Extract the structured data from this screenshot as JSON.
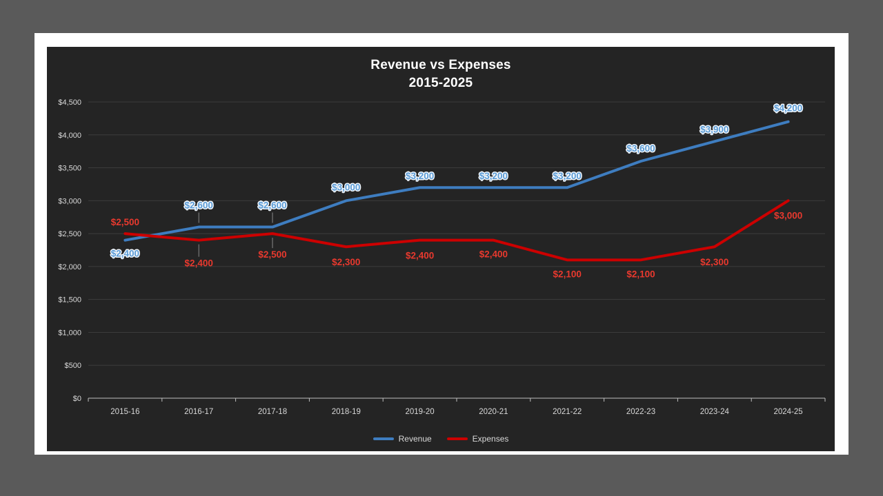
{
  "page": {
    "background": "#5A5A5A",
    "slide_background": "#FFFFFF",
    "chart_background": "#242424"
  },
  "chart_data": {
    "type": "line",
    "title": "Revenue vs Expenses",
    "subtitle": "2015-2025",
    "categories": [
      "2015-16",
      "2016-17",
      "2017-18",
      "2018-19",
      "2019-20",
      "2020-21",
      "2021-22",
      "2022-23",
      "2023-24",
      "2024-25"
    ],
    "series": [
      {
        "name": "Revenue",
        "color": "#3E7DC0",
        "label_color": "#5B9BD5",
        "label_stroke": "#F2F7FC",
        "values": [
          2400,
          2600,
          2600,
          3000,
          3200,
          3200,
          3200,
          3600,
          3900,
          4200
        ],
        "labels": [
          "$2,400",
          "$2,600",
          "$2,600",
          "$3,000",
          "$3,200",
          "$3,200",
          "$3,200",
          "$3,600",
          "$3,900",
          "$4,200"
        ],
        "label_offsets": [
          20,
          -31,
          -31,
          -19,
          -16,
          -16,
          -16,
          -18,
          -17,
          -19
        ]
      },
      {
        "name": "Expenses",
        "color": "#CC0000",
        "label_color": "#E8392E",
        "label_stroke": "",
        "values": [
          2500,
          2400,
          2500,
          2300,
          2400,
          2400,
          2100,
          2100,
          2300,
          3000
        ],
        "labels": [
          "$2,500",
          "$2,400",
          "$2,500",
          "$2,300",
          "$2,400",
          "$2,400",
          "$2,100",
          "$2,100",
          "$2,300",
          "$3,000"
        ],
        "label_offsets": [
          -16,
          34,
          31,
          23,
          23,
          21,
          21,
          21,
          23,
          22
        ]
      }
    ],
    "ylim": [
      0,
      4500
    ],
    "y_ticks": {
      "values": [
        0,
        500,
        1000,
        1500,
        2000,
        2500,
        3000,
        3500,
        4000,
        4500
      ],
      "labels": [
        "$0",
        "$500",
        "$1,000",
        "$1,500",
        "$2,000",
        "$2,500",
        "$3,000",
        "$3,500",
        "$4,000",
        "$4,500"
      ]
    },
    "grid": true,
    "legend_position": "bottom",
    "colors": {
      "grid": "#3C3C3C",
      "axis": "#BFBFBF",
      "axis_text": "#D9D9D9",
      "title": "#FFFFFF",
      "legend_text": "#D9D9D9",
      "leader_line": "#8A8A8A"
    }
  }
}
